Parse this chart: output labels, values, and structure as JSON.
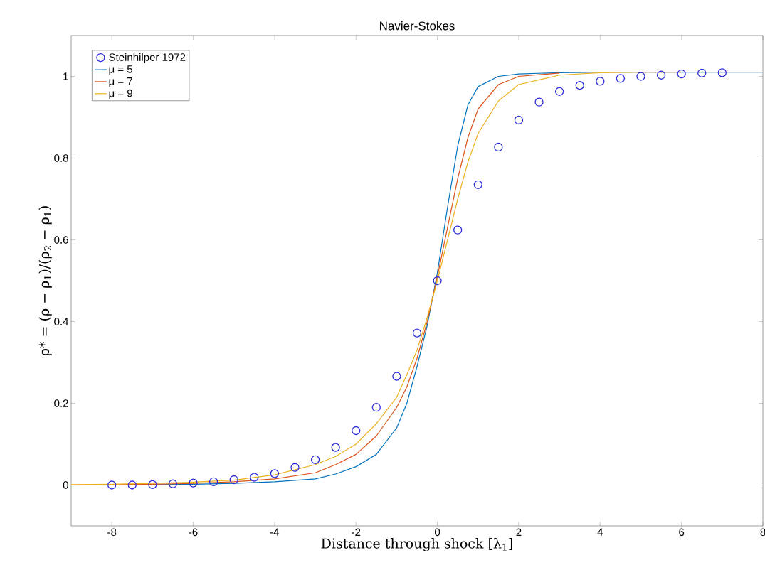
{
  "chart_data": {
    "type": "line",
    "title": "Navier-Stokes",
    "xlabel": "Distance through shock [λ$_{1}$]",
    "ylabel": "ρ* = (ρ − ρ$_{1}$)/(ρ$_{2}$ − ρ$_{1}$)",
    "xlim": [
      -9,
      8
    ],
    "ylim": [
      -0.1,
      1.1
    ],
    "xticks": [
      -8,
      -6,
      -4,
      -2,
      0,
      2,
      4,
      6,
      8
    ],
    "yticks": [
      0,
      0.2,
      0.4,
      0.6,
      0.8,
      1
    ],
    "grid": false,
    "legend": "top left",
    "series": [
      {
        "name": "Steinhilper 1972",
        "type": "scatter",
        "marker": "circle",
        "color": "#2b2bd9",
        "x": [
          -8,
          -7.5,
          -7,
          -6.5,
          -6,
          -5.5,
          -5,
          -4.5,
          -4,
          -3.5,
          -3,
          -2.5,
          -2,
          -1.5,
          -1,
          -0.5,
          0,
          0.5,
          1,
          1.5,
          2,
          2.5,
          3,
          3.5,
          4,
          4.5,
          5,
          5.5,
          6,
          6.5,
          7
        ],
        "values": [
          0,
          0,
          0.001,
          0.003,
          0.005,
          0.008,
          0.013,
          0.019,
          0.028,
          0.043,
          0.062,
          0.092,
          0.133,
          0.19,
          0.266,
          0.372,
          0.5,
          0.624,
          0.735,
          0.827,
          0.893,
          0.937,
          0.963,
          0.978,
          0.988,
          0.995,
          1.0,
          1.003,
          1.006,
          1.008,
          1.009
        ]
      },
      {
        "name": "μ = 5",
        "type": "line",
        "marker": "none",
        "color": "#0072bd",
        "x": [
          -9,
          -8,
          -7,
          -6,
          -5,
          -4,
          -3,
          -2.5,
          -2,
          -1.5,
          -1,
          -0.75,
          -0.5,
          -0.25,
          0,
          0.25,
          0.5,
          0.75,
          1,
          1.5,
          2,
          3,
          4,
          5,
          6,
          7,
          8
        ],
        "values": [
          0,
          0,
          0.001,
          0.002,
          0.004,
          0.008,
          0.015,
          0.027,
          0.045,
          0.075,
          0.14,
          0.2,
          0.29,
          0.39,
          0.52,
          0.68,
          0.83,
          0.93,
          0.975,
          1.0,
          1.006,
          1.009,
          1.01,
          1.01,
          1.01,
          1.01,
          1.01
        ]
      },
      {
        "name": "μ = 7",
        "type": "line",
        "marker": "none",
        "color": "#d95319",
        "x": [
          -9,
          -8,
          -7,
          -6,
          -5,
          -4,
          -3,
          -2.5,
          -2,
          -1.5,
          -1,
          -0.75,
          -0.5,
          -0.25,
          0,
          0.25,
          0.5,
          0.75,
          1,
          1.5,
          2,
          3
        ],
        "values": [
          0,
          0.001,
          0.002,
          0.004,
          0.008,
          0.015,
          0.03,
          0.05,
          0.075,
          0.12,
          0.19,
          0.24,
          0.31,
          0.4,
          0.51,
          0.63,
          0.75,
          0.85,
          0.92,
          0.98,
          1.0,
          1.008
        ]
      },
      {
        "name": "μ = 9",
        "type": "line",
        "marker": "none",
        "color": "#edb120",
        "x": [
          -9,
          -8,
          -7,
          -6,
          -5,
          -4,
          -3,
          -2.5,
          -2,
          -1.5,
          -1,
          -0.75,
          -0.5,
          -0.25,
          0,
          0.25,
          0.5,
          0.75,
          1,
          1.5,
          2,
          3,
          4,
          5,
          6
        ],
        "values": [
          0.001,
          0.002,
          0.004,
          0.007,
          0.012,
          0.025,
          0.05,
          0.07,
          0.1,
          0.15,
          0.215,
          0.27,
          0.33,
          0.41,
          0.5,
          0.6,
          0.7,
          0.79,
          0.86,
          0.94,
          0.98,
          1.003,
          1.009,
          1.01,
          1.01
        ]
      }
    ]
  }
}
